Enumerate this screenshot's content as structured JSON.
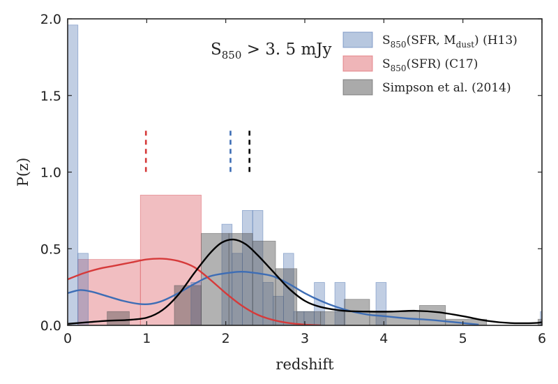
{
  "chart_data": {
    "type": "bar",
    "title": "",
    "xlabel": "redshift",
    "ylabel": "P(z)",
    "xlim": [
      0,
      6
    ],
    "ylim": [
      0,
      2.0
    ],
    "x_ticks": [
      "0",
      "1",
      "2",
      "3",
      "4",
      "5",
      "6"
    ],
    "y_ticks": [
      "0.0",
      "0.5",
      "1.0",
      "1.5",
      "2.0"
    ],
    "annotation": {
      "main": "S",
      "sub": "850",
      "rest": " > 3. 5 mJy"
    },
    "legend_position": "top-right",
    "series": [
      {
        "name": "S850(SFR, Mdust) (H13)",
        "legend": {
          "main": "S",
          "sub": "850",
          "open": "(SFR, M",
          "sub2": "dust",
          "close": ") (H13)"
        },
        "kind": "histogram",
        "color": "#4c72b0",
        "fill_opacity": 0.35,
        "bins": [
          {
            "x0": 0.0,
            "x1": 0.13,
            "y": 1.96
          },
          {
            "x0": 0.13,
            "x1": 0.26,
            "y": 0.47
          },
          {
            "x0": 1.56,
            "x1": 1.69,
            "y": 0.28
          },
          {
            "x0": 1.95,
            "x1": 2.08,
            "y": 0.66
          },
          {
            "x0": 2.08,
            "x1": 2.21,
            "y": 0.47
          },
          {
            "x0": 2.21,
            "x1": 2.34,
            "y": 0.75
          },
          {
            "x0": 2.34,
            "x1": 2.47,
            "y": 0.75
          },
          {
            "x0": 2.47,
            "x1": 2.6,
            "y": 0.28
          },
          {
            "x0": 2.6,
            "x1": 2.73,
            "y": 0.19
          },
          {
            "x0": 2.73,
            "x1": 2.86,
            "y": 0.47
          },
          {
            "x0": 2.86,
            "x1": 2.99,
            "y": 0.09
          },
          {
            "x0": 2.99,
            "x1": 3.12,
            "y": 0.09
          },
          {
            "x0": 3.12,
            "x1": 3.25,
            "y": 0.28
          },
          {
            "x0": 3.38,
            "x1": 3.51,
            "y": 0.28
          },
          {
            "x0": 3.9,
            "x1": 4.03,
            "y": 0.28
          },
          {
            "x0": 5.98,
            "x1": 6.11,
            "y": 0.09
          }
        ],
        "kde": {
          "color": "#3d6db5",
          "x": [
            0,
            0.15,
            0.3,
            0.5,
            0.7,
            0.9,
            1.05,
            1.2,
            1.4,
            1.6,
            1.8,
            2.0,
            2.2,
            2.4,
            2.6,
            2.8,
            3.0,
            3.2,
            3.4,
            3.6,
            3.8,
            4.0,
            4.3,
            4.6,
            4.9,
            5.2
          ],
          "y": [
            0.21,
            0.23,
            0.22,
            0.19,
            0.16,
            0.14,
            0.14,
            0.16,
            0.21,
            0.27,
            0.32,
            0.34,
            0.35,
            0.34,
            0.32,
            0.27,
            0.21,
            0.16,
            0.12,
            0.09,
            0.07,
            0.06,
            0.045,
            0.035,
            0.02,
            0.005
          ]
        },
        "median_z": 2.06
      },
      {
        "name": "S850(SFR) (C17)",
        "legend": {
          "main": "S",
          "sub": "850",
          "open": "(SFR) (C17)",
          "sub2": "",
          "close": ""
        },
        "kind": "histogram",
        "color": "#d9535b",
        "fill_opacity": 0.38,
        "bins": [
          {
            "x0": 0.13,
            "x1": 0.92,
            "y": 0.43
          },
          {
            "x0": 0.92,
            "x1": 1.69,
            "y": 0.85
          }
        ],
        "kde": {
          "color": "#d63a3a",
          "x": [
            0,
            0.2,
            0.4,
            0.6,
            0.8,
            1.0,
            1.2,
            1.4,
            1.6,
            1.8,
            2.0,
            2.2,
            2.4,
            2.6,
            2.8,
            3.0,
            3.2
          ],
          "y": [
            0.3,
            0.34,
            0.37,
            0.39,
            0.41,
            0.43,
            0.435,
            0.42,
            0.38,
            0.3,
            0.21,
            0.13,
            0.07,
            0.035,
            0.015,
            0.005,
            0.0
          ]
        },
        "median_z": 0.99
      },
      {
        "name": "Simpson et al. (2014)",
        "legend": {
          "main": "Simpson et al. (2014)",
          "sub": "",
          "open": "",
          "sub2": "",
          "close": ""
        },
        "kind": "histogram",
        "color": "#555555",
        "fill_opacity": 0.45,
        "bins": [
          {
            "x0": 0.5,
            "x1": 0.78,
            "y": 0.09
          },
          {
            "x0": 1.35,
            "x1": 1.69,
            "y": 0.26
          },
          {
            "x0": 1.69,
            "x1": 2.04,
            "y": 0.6
          },
          {
            "x0": 2.04,
            "x1": 2.34,
            "y": 0.6
          },
          {
            "x0": 2.34,
            "x1": 2.63,
            "y": 0.55
          },
          {
            "x0": 2.63,
            "x1": 2.9,
            "y": 0.37
          },
          {
            "x0": 2.9,
            "x1": 3.2,
            "y": 0.09
          },
          {
            "x0": 3.2,
            "x1": 3.5,
            "y": 0.09
          },
          {
            "x0": 3.5,
            "x1": 3.82,
            "y": 0.17
          },
          {
            "x0": 3.82,
            "x1": 4.45,
            "y": 0.09
          },
          {
            "x0": 4.45,
            "x1": 4.78,
            "y": 0.13
          },
          {
            "x0": 4.78,
            "x1": 5.3,
            "y": 0.04
          },
          {
            "x0": 5.95,
            "x1": 6.05,
            "y": 0.04
          }
        ],
        "kde": {
          "color": "#000000",
          "x": [
            0,
            0.25,
            0.5,
            0.75,
            1.0,
            1.2,
            1.4,
            1.6,
            1.8,
            1.95,
            2.1,
            2.25,
            2.4,
            2.6,
            2.8,
            3.0,
            3.2,
            3.5,
            3.8,
            4.1,
            4.4,
            4.7,
            5.0,
            5.3,
            5.6,
            5.9,
            6.0
          ],
          "y": [
            0.01,
            0.02,
            0.03,
            0.035,
            0.05,
            0.1,
            0.2,
            0.34,
            0.47,
            0.54,
            0.56,
            0.53,
            0.46,
            0.35,
            0.24,
            0.16,
            0.12,
            0.095,
            0.09,
            0.09,
            0.095,
            0.085,
            0.06,
            0.03,
            0.015,
            0.015,
            0.02
          ]
        },
        "median_z": 2.3
      }
    ]
  }
}
